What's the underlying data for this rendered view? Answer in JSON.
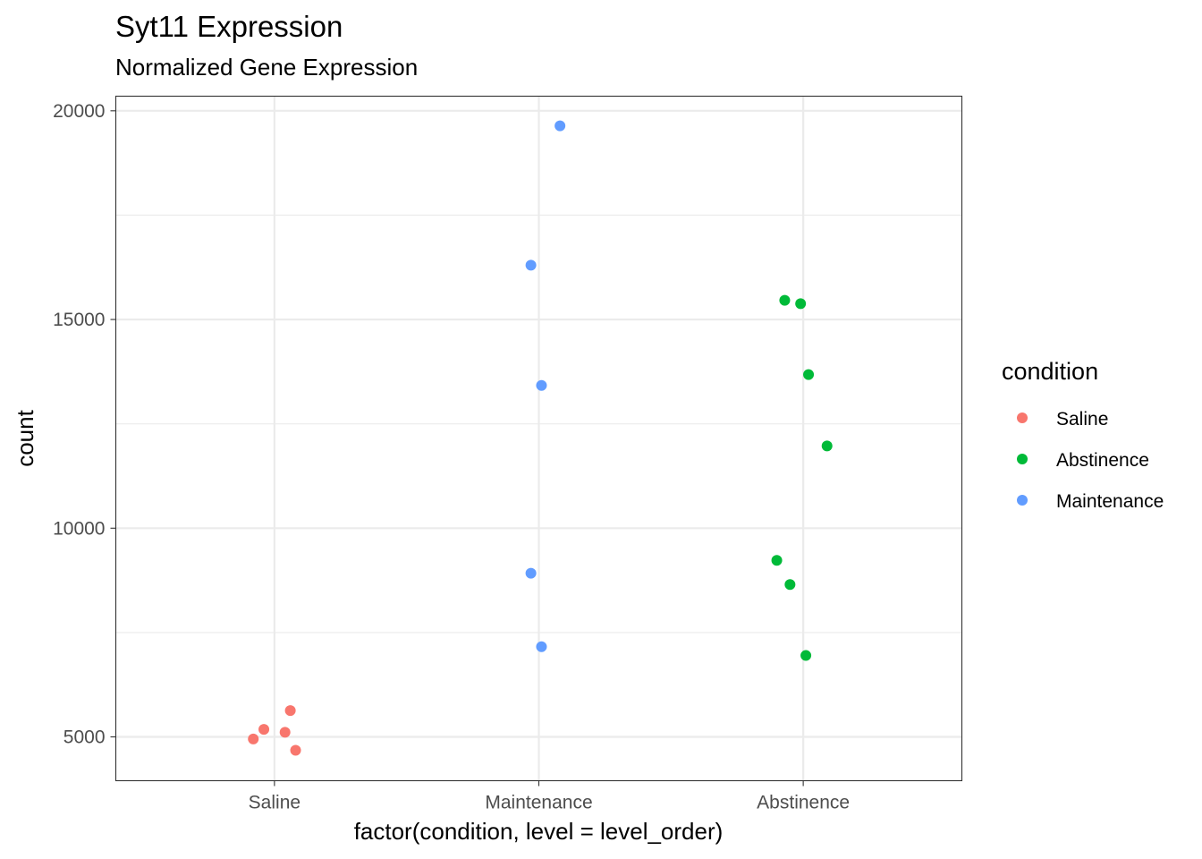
{
  "chart_data": {
    "type": "scatter",
    "title": "Syt11 Expression",
    "subtitle": "Normalized Gene Expression",
    "xlabel": "factor(condition, level = level_order)",
    "ylabel": "count",
    "categories": [
      "Saline",
      "Maintenance",
      "Abstinence"
    ],
    "ylim": [
      3950,
      20350
    ],
    "y_ticks": [
      5000,
      10000,
      15000,
      20000
    ],
    "y_tick_labels": [
      "5000",
      "10000",
      "15000",
      "20000"
    ],
    "grid": true,
    "legend": {
      "title": "condition",
      "placement": "right",
      "entries": [
        {
          "label": "Saline",
          "color": "#F8766D"
        },
        {
          "label": "Abstinence",
          "color": "#00BA38"
        },
        {
          "label": "Maintenance",
          "color": "#619CFF"
        }
      ]
    },
    "series": [
      {
        "name": "Saline",
        "color": "#F8766D",
        "category": "Saline",
        "points": [
          {
            "jitter": -0.08,
            "y": 4950
          },
          {
            "jitter": -0.04,
            "y": 5180
          },
          {
            "jitter": 0.04,
            "y": 5110
          },
          {
            "jitter": 0.06,
            "y": 5630
          },
          {
            "jitter": 0.08,
            "y": 4680
          }
        ]
      },
      {
        "name": "Maintenance",
        "color": "#619CFF",
        "category": "Maintenance",
        "points": [
          {
            "jitter": 0.08,
            "y": 19640
          },
          {
            "jitter": -0.03,
            "y": 16300
          },
          {
            "jitter": 0.01,
            "y": 13420
          },
          {
            "jitter": -0.03,
            "y": 8920
          },
          {
            "jitter": 0.01,
            "y": 7160
          }
        ]
      },
      {
        "name": "Abstinence",
        "color": "#00BA38",
        "category": "Abstinence",
        "points": [
          {
            "jitter": -0.07,
            "y": 15460
          },
          {
            "jitter": -0.01,
            "y": 15380
          },
          {
            "jitter": 0.02,
            "y": 13680
          },
          {
            "jitter": 0.09,
            "y": 11970
          },
          {
            "jitter": -0.1,
            "y": 9230
          },
          {
            "jitter": -0.05,
            "y": 8650
          },
          {
            "jitter": 0.01,
            "y": 6950
          }
        ]
      }
    ]
  }
}
